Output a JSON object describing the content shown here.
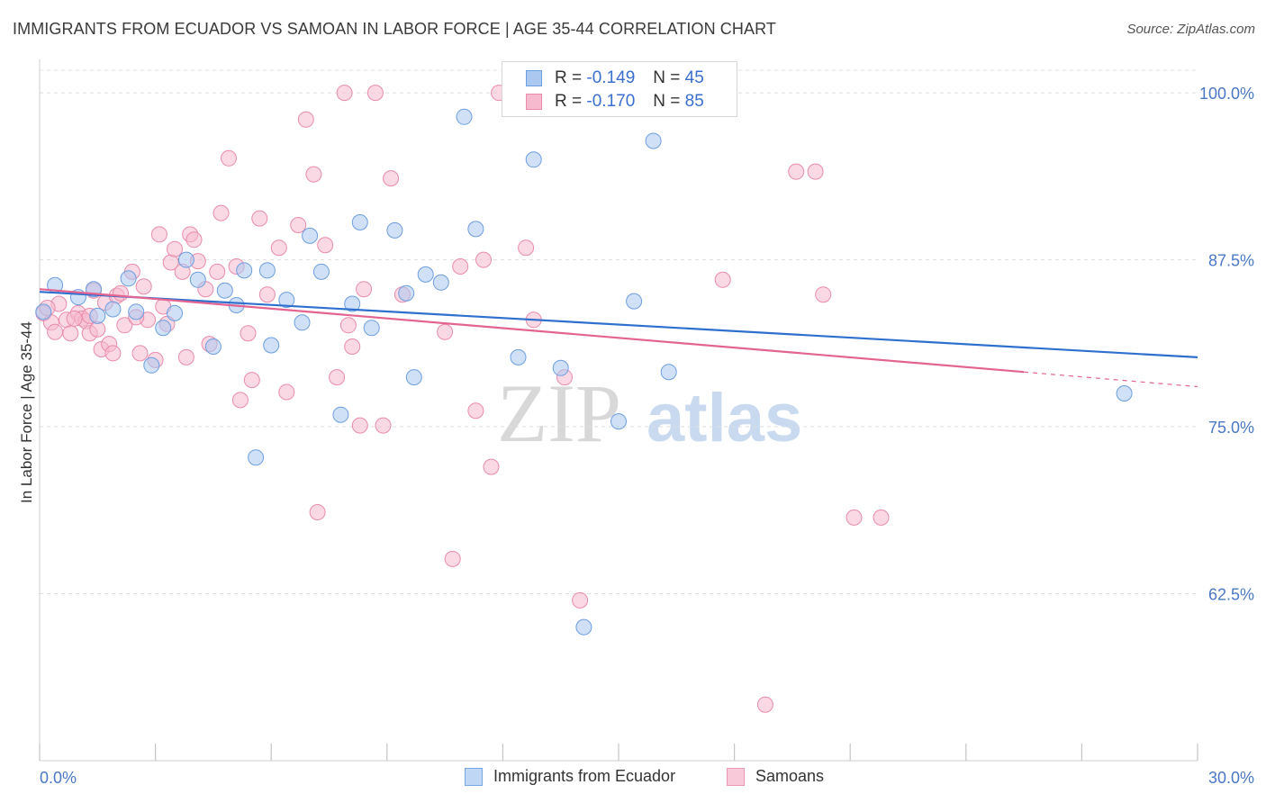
{
  "title": "IMMIGRANTS FROM ECUADOR VS SAMOAN IN LABOR FORCE | AGE 35-44 CORRELATION CHART",
  "source": "Source: ZipAtlas.com",
  "watermark": {
    "zip": "ZIP",
    "atlas": "atlas"
  },
  "legend": {
    "rows": [
      {
        "r_key": "R =",
        "r_value": "-0.149",
        "n_key": "N =",
        "n_value": "45",
        "color": "#aac8f0",
        "border": "#6d9ee0"
      },
      {
        "r_key": "R =",
        "r_value": "-0.170",
        "n_key": "N =",
        "n_value": "85",
        "color": "#f6b9ce",
        "border": "#e98cab"
      }
    ]
  },
  "bottom_legend": [
    {
      "label": "Immigrants from Ecuador",
      "color": "#bfd6f4",
      "border": "#7aa7e4"
    },
    {
      "label": "Samoans",
      "color": "#f8c9d8",
      "border": "#ea99b4"
    }
  ],
  "chart_data": {
    "type": "scatter",
    "title": "IMMIGRANTS FROM ECUADOR VS SAMOAN IN LABOR FORCE | AGE 35-44 CORRELATION CHART",
    "xlabel": "",
    "ylabel": "In Labor Force | Age 35-44",
    "xlim": [
      0,
      30
    ],
    "ylim": [
      50.0,
      102.5
    ],
    "x_tick_labels": [
      "0.0%",
      "30.0%"
    ],
    "y_ticks": [
      62.5,
      75.0,
      87.5,
      100.0
    ],
    "y_tick_labels": [
      "62.5%",
      "75.0%",
      "87.5%",
      "100.0%"
    ],
    "grid": "horizontal dashed",
    "series": [
      {
        "name": "Immigrants from Ecuador",
        "color": "#6d9ee0",
        "fill": "#aac8f0",
        "trend_color": "#2f6fce",
        "trend": {
          "x": [
            0,
            30
          ],
          "y": [
            85.1,
            80.2
          ]
        },
        "points": [
          [
            0.1,
            83.6
          ],
          [
            0.4,
            85.6
          ],
          [
            1.0,
            84.7
          ],
          [
            1.4,
            85.3
          ],
          [
            1.9,
            83.8
          ],
          [
            1.5,
            83.3
          ],
          [
            2.3,
            86.1
          ],
          [
            2.5,
            83.6
          ],
          [
            2.9,
            79.6
          ],
          [
            3.2,
            82.4
          ],
          [
            3.5,
            83.5
          ],
          [
            3.8,
            87.5
          ],
          [
            4.1,
            86.0
          ],
          [
            4.5,
            81.0
          ],
          [
            4.8,
            85.2
          ],
          [
            5.1,
            84.1
          ],
          [
            5.3,
            86.7
          ],
          [
            5.6,
            72.7
          ],
          [
            5.9,
            86.7
          ],
          [
            6.0,
            81.1
          ],
          [
            6.4,
            84.5
          ],
          [
            6.8,
            82.8
          ],
          [
            7.0,
            89.3
          ],
          [
            7.3,
            86.6
          ],
          [
            7.8,
            75.9
          ],
          [
            8.1,
            84.2
          ],
          [
            8.3,
            90.3
          ],
          [
            8.6,
            82.4
          ],
          [
            9.2,
            89.7
          ],
          [
            9.5,
            85.0
          ],
          [
            9.7,
            78.7
          ],
          [
            10.0,
            86.4
          ],
          [
            10.4,
            85.8
          ],
          [
            11.0,
            98.2
          ],
          [
            11.3,
            89.8
          ],
          [
            12.4,
            80.2
          ],
          [
            12.8,
            95.0
          ],
          [
            13.5,
            79.4
          ],
          [
            14.1,
            60.0
          ],
          [
            15.0,
            75.4
          ],
          [
            15.4,
            84.4
          ],
          [
            15.9,
            96.4
          ],
          [
            16.3,
            79.1
          ],
          [
            28.1,
            77.5
          ],
          [
            13.3,
            100.8
          ]
        ]
      },
      {
        "name": "Samoans",
        "color": "#e98cab",
        "fill": "#f6b9ce",
        "trend_color": "#e36491",
        "trend": {
          "x": [
            0,
            25.5
          ],
          "y": [
            85.3,
            79.1
          ]
        },
        "trend_dashed": {
          "x": [
            25.5,
            30
          ],
          "y": [
            79.1,
            78.0
          ]
        },
        "points": [
          [
            0.1,
            83.5
          ],
          [
            0.3,
            82.8
          ],
          [
            0.4,
            82.1
          ],
          [
            0.5,
            84.2
          ],
          [
            0.7,
            83.0
          ],
          [
            0.8,
            82.0
          ],
          [
            1.0,
            83.5
          ],
          [
            1.1,
            83.1
          ],
          [
            1.2,
            82.9
          ],
          [
            1.3,
            82.0
          ],
          [
            1.4,
            85.2
          ],
          [
            1.5,
            82.3
          ],
          [
            1.6,
            80.8
          ],
          [
            1.7,
            84.3
          ],
          [
            1.8,
            81.2
          ],
          [
            1.9,
            80.5
          ],
          [
            2.0,
            84.8
          ],
          [
            2.1,
            85.0
          ],
          [
            2.2,
            82.6
          ],
          [
            2.4,
            86.6
          ],
          [
            2.6,
            80.5
          ],
          [
            2.7,
            85.5
          ],
          [
            2.8,
            83.0
          ],
          [
            3.0,
            80.0
          ],
          [
            3.1,
            89.4
          ],
          [
            3.2,
            84.0
          ],
          [
            3.3,
            82.7
          ],
          [
            3.4,
            87.3
          ],
          [
            3.5,
            88.3
          ],
          [
            3.7,
            86.6
          ],
          [
            3.8,
            80.2
          ],
          [
            3.9,
            89.4
          ],
          [
            4.0,
            89.0
          ],
          [
            4.1,
            87.4
          ],
          [
            4.3,
            85.3
          ],
          [
            4.4,
            81.2
          ],
          [
            4.6,
            86.6
          ],
          [
            4.7,
            91.0
          ],
          [
            4.9,
            95.1
          ],
          [
            5.1,
            87.0
          ],
          [
            5.2,
            77.0
          ],
          [
            5.4,
            82.0
          ],
          [
            5.5,
            78.5
          ],
          [
            5.7,
            90.6
          ],
          [
            5.9,
            84.9
          ],
          [
            6.2,
            88.4
          ],
          [
            6.4,
            77.6
          ],
          [
            6.7,
            90.1
          ],
          [
            6.9,
            98.0
          ],
          [
            7.1,
            93.9
          ],
          [
            7.2,
            68.6
          ],
          [
            7.4,
            88.6
          ],
          [
            7.7,
            78.7
          ],
          [
            7.9,
            100.0
          ],
          [
            8.0,
            82.6
          ],
          [
            8.1,
            81.0
          ],
          [
            8.3,
            75.1
          ],
          [
            8.4,
            85.3
          ],
          [
            8.7,
            100.0
          ],
          [
            8.9,
            75.1
          ],
          [
            9.1,
            93.6
          ],
          [
            9.4,
            84.9
          ],
          [
            10.5,
            82.1
          ],
          [
            10.7,
            65.1
          ],
          [
            10.9,
            87.0
          ],
          [
            11.3,
            76.2
          ],
          [
            11.5,
            87.5
          ],
          [
            11.7,
            72.0
          ],
          [
            11.9,
            100.0
          ],
          [
            12.6,
            88.4
          ],
          [
            12.8,
            83.0
          ],
          [
            13.6,
            78.7
          ],
          [
            14.0,
            100.0
          ],
          [
            14.0,
            62.0
          ],
          [
            17.7,
            86.0
          ],
          [
            18.8,
            54.2
          ],
          [
            19.6,
            94.1
          ],
          [
            20.1,
            94.1
          ],
          [
            20.3,
            84.9
          ],
          [
            21.1,
            68.2
          ],
          [
            21.8,
            68.2
          ],
          [
            0.2,
            83.9
          ],
          [
            2.5,
            83.2
          ],
          [
            0.9,
            83.1
          ],
          [
            1.3,
            83.3
          ]
        ]
      }
    ]
  }
}
